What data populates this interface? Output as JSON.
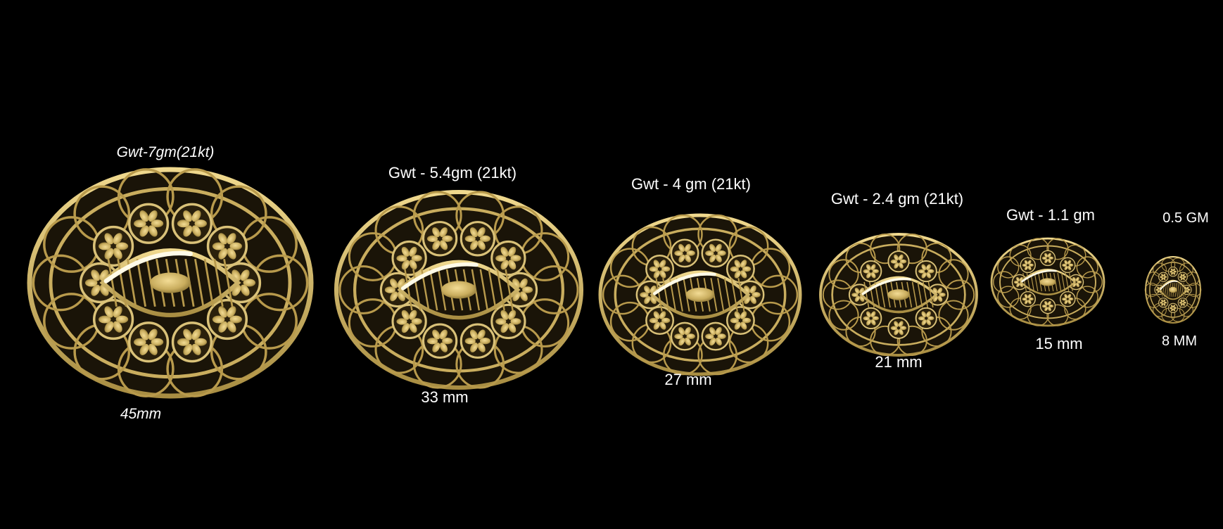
{
  "colors": {
    "background": "#000000",
    "gold": "#d9c178",
    "gold_dark": "#7a6428",
    "highlight": "#fffbe8",
    "text": "#ffffff"
  },
  "pendants": [
    {
      "weight_label": "Gwt-7gm(21kt)",
      "size_label": "45mm",
      "italic": true
    },
    {
      "weight_label": "Gwt - 5.4gm (21kt)",
      "size_label": "33 mm"
    },
    {
      "weight_label": "Gwt - 4 gm (21kt)",
      "size_label": "27 mm"
    },
    {
      "weight_label": "Gwt - 2.4 gm (21kt)",
      "size_label": "21 mm"
    },
    {
      "weight_label": "Gwt - 1.1 gm",
      "size_label": "15 mm"
    },
    {
      "weight_label": "0.5 GM",
      "size_label": "8 MM"
    }
  ]
}
